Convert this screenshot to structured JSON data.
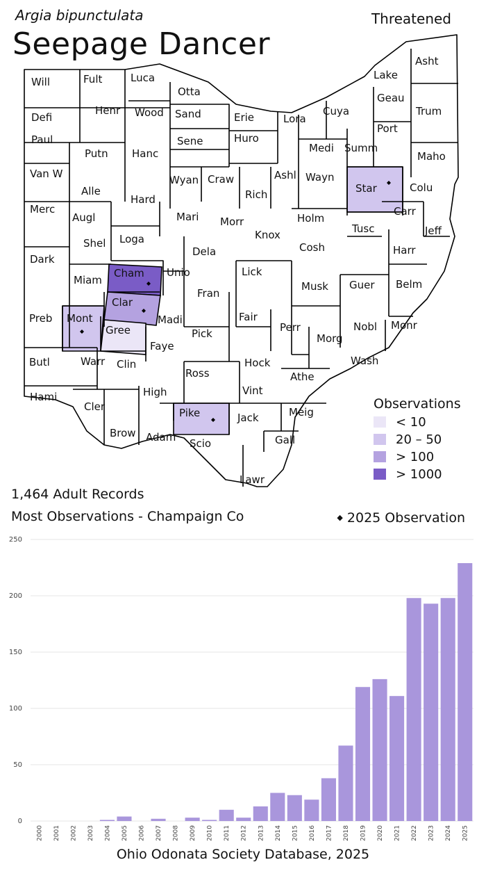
{
  "header": {
    "scientific_name": "Argia bipunctulata",
    "common_name": "Seepage Dancer",
    "status": "Threatened"
  },
  "map": {
    "counties": [
      "Will",
      "Fult",
      "Luca",
      "Otta",
      "Lake",
      "Asht",
      "Defi",
      "Henr",
      "Wood",
      "Sand",
      "Erie",
      "Lora",
      "Cuya",
      "Geau",
      "Trum",
      "Paul",
      "Putn",
      "Hanc",
      "Sene",
      "Huro",
      "Medi",
      "Summ",
      "Port",
      "Maho",
      "Van W",
      "Alle",
      "Hard",
      "Wyan",
      "Craw",
      "Rich",
      "Ashl",
      "Wayn",
      "Star",
      "Colu",
      "Merc",
      "Augl",
      "Mari",
      "Morr",
      "Holm",
      "Carr",
      "Shel",
      "Loga",
      "Knox",
      "Tusc",
      "Jeff",
      "Dela",
      "Cosh",
      "Harr",
      "Dark",
      "Cham",
      "Unio",
      "Lick",
      "Miam",
      "Fran",
      "Musk",
      "Guer",
      "Belm",
      "Clar",
      "Madi",
      "Fair",
      "Preb",
      "Mont",
      "Gree",
      "Pick",
      "Perr",
      "Nobl",
      "Monr",
      "Morg",
      "Faye",
      "Butl",
      "Warr",
      "Clin",
      "Hock",
      "Wash",
      "Ross",
      "Athe",
      "Hami",
      "High",
      "Vint",
      "Cler",
      "Pike",
      "Jack",
      "Meig",
      "Brow",
      "Adam",
      "Gall",
      "Scio",
      "Lawr"
    ],
    "shaded": [
      {
        "county": "Cham",
        "class": ">1000",
        "color": "#7a5cc6",
        "obs_2025": true
      },
      {
        "county": "Clar",
        "class": ">100",
        "color": "#b4a2e0",
        "obs_2025": true
      },
      {
        "county": "Mont",
        "class": "20-50",
        "color": "#d1c6ee",
        "obs_2025": true
      },
      {
        "county": "Star",
        "class": "20-50",
        "color": "#d1c6ee",
        "obs_2025": true
      },
      {
        "county": "Pike",
        "class": "20-50",
        "color": "#d1c6ee",
        "obs_2025": true
      },
      {
        "county": "Gree",
        "class": "<10",
        "color": "#ebe6f7",
        "obs_2025": false
      }
    ]
  },
  "legend": {
    "title": "Observations",
    "items": [
      {
        "label": "< 10",
        "color": "#ebe6f7"
      },
      {
        "label": "20 – 50",
        "color": "#d1c6ee"
      },
      {
        "label": "> 100",
        "color": "#b4a2e0"
      },
      {
        "label": "> 1000",
        "color": "#7a5cc6"
      }
    ]
  },
  "summary": {
    "records": "1,464 Adult Records",
    "most": "Most Observations - Champaign Co",
    "obs2025": "2025  Observation"
  },
  "chart_data": {
    "type": "bar",
    "categories": [
      "2000",
      "2001",
      "2002",
      "2003",
      "2004",
      "2005",
      "2006",
      "2007",
      "2008",
      "2009",
      "2010",
      "2011",
      "2012",
      "2013",
      "2014",
      "2015",
      "2016",
      "2017",
      "2018",
      "2019",
      "2020",
      "2021",
      "2022",
      "2023",
      "2024",
      "2025"
    ],
    "values": [
      0,
      0,
      0,
      0,
      1,
      4,
      0,
      2,
      0,
      3,
      1,
      10,
      3,
      13,
      25,
      23,
      19,
      38,
      67,
      119,
      126,
      111,
      198,
      193,
      198,
      229
    ],
    "ylim": [
      0,
      250
    ],
    "yticks": [
      0,
      50,
      100,
      150,
      200,
      250
    ],
    "bar_color": "#a996dc",
    "grid": true
  },
  "footer": {
    "source": "Ohio Odonata Society Database, 2025"
  }
}
